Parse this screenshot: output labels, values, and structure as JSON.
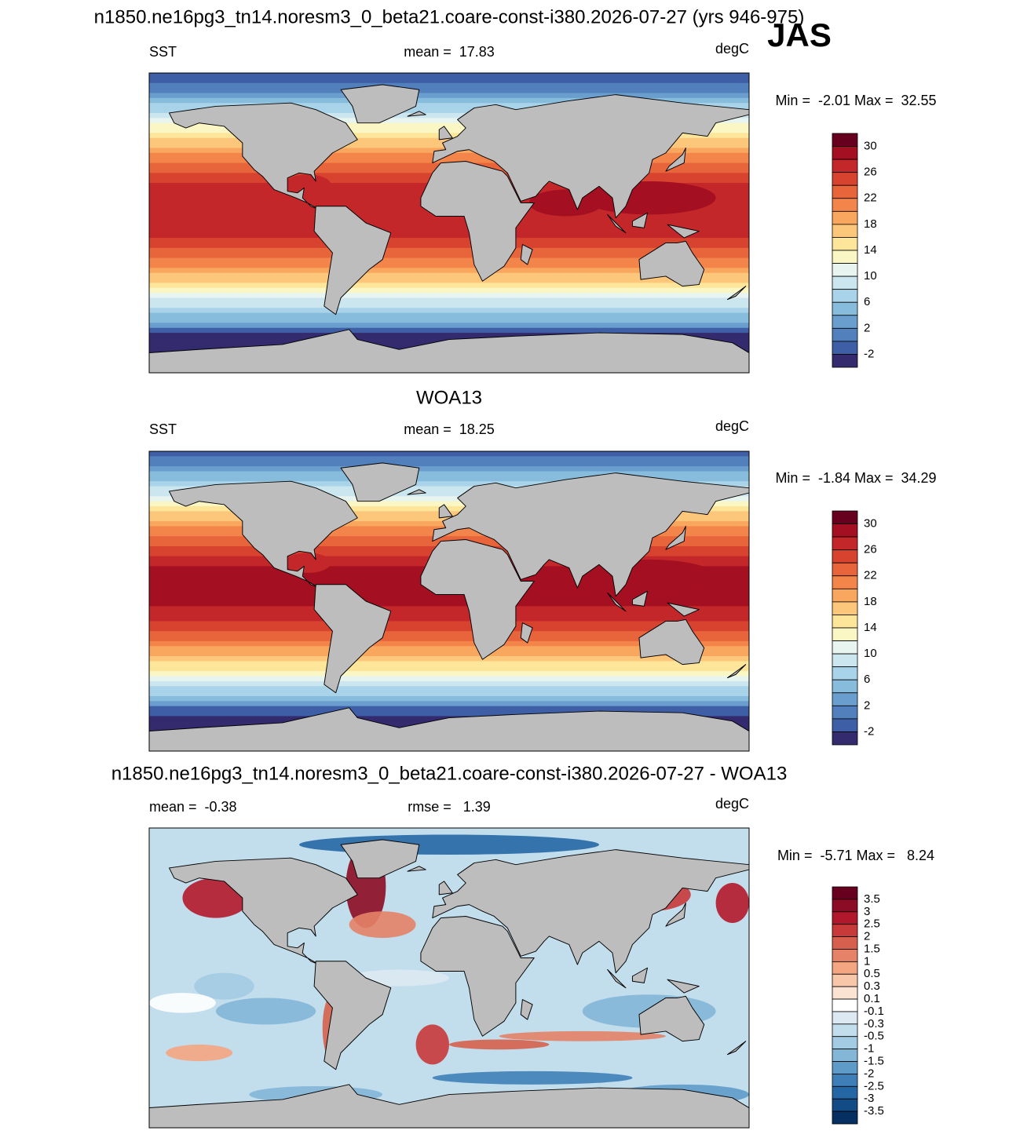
{
  "title": "n1850.ne16pg3_tn14.noresm3_0_beta21.coare-const-i380.2026-07-27 (yrs 946-975)",
  "season": "JAS",
  "panels": [
    {
      "left": "SST",
      "center": "mean =  17.83",
      "right": "degC",
      "minmax": "Min =  -2.01 Max =  32.55",
      "colorbar": {
        "labels": [
          30,
          26,
          22,
          18,
          14,
          10,
          6,
          2,
          -2
        ],
        "colors": [
          "#67001f",
          "#a50f22",
          "#c4272a",
          "#d7432f",
          "#e8643a",
          "#f3854b",
          "#f9a65e",
          "#fcc77a",
          "#fde59a",
          "#fbf7c4",
          "#e8f4f0",
          "#cbe6ef",
          "#a9d3e8",
          "#88bcdc",
          "#6a9ece",
          "#5180bd",
          "#3e5ea5",
          "#332b6e"
        ]
      }
    },
    {
      "subtitle": "WOA13",
      "left": "SST",
      "center": "mean =  18.25",
      "right": "degC",
      "minmax": "Min =  -1.84 Max =  34.29",
      "colorbar": {
        "labels": [
          30,
          26,
          22,
          18,
          14,
          10,
          6,
          2,
          -2
        ],
        "colors": [
          "#67001f",
          "#a50f22",
          "#c4272a",
          "#d7432f",
          "#e8643a",
          "#f3854b",
          "#f9a65e",
          "#fcc77a",
          "#fde59a",
          "#fbf7c4",
          "#e8f4f0",
          "#cbe6ef",
          "#a9d3e8",
          "#88bcdc",
          "#6a9ece",
          "#5180bd",
          "#3e5ea5",
          "#332b6e"
        ]
      }
    },
    {
      "subtitle": "n1850.ne16pg3_tn14.noresm3_0_beta21.coare-const-i380.2026-07-27 - WOA13",
      "left": "mean =  -0.38",
      "center": "rmse =   1.39",
      "right": "degC",
      "minmax": "Min =  -5.71 Max =   8.24",
      "colorbar": {
        "labels": [
          3.5,
          3,
          2.5,
          2,
          1.5,
          1,
          0.5,
          0.3,
          0.1,
          -0.1,
          -0.3,
          -0.5,
          -1,
          -1.5,
          -2,
          -2.5,
          -3,
          -3.5
        ],
        "colors": [
          "#67001f",
          "#8d0c25",
          "#b2182b",
          "#c8393a",
          "#d6604d",
          "#e58267",
          "#f4a582",
          "#f8c6a8",
          "#fbe3d3",
          "#ffffff",
          "#dde9f2",
          "#c2ddec",
          "#a3cbe3",
          "#84b6d8",
          "#5f9bc9",
          "#3f7fb8",
          "#2567a5",
          "#134b87",
          "#053061"
        ]
      }
    }
  ]
}
